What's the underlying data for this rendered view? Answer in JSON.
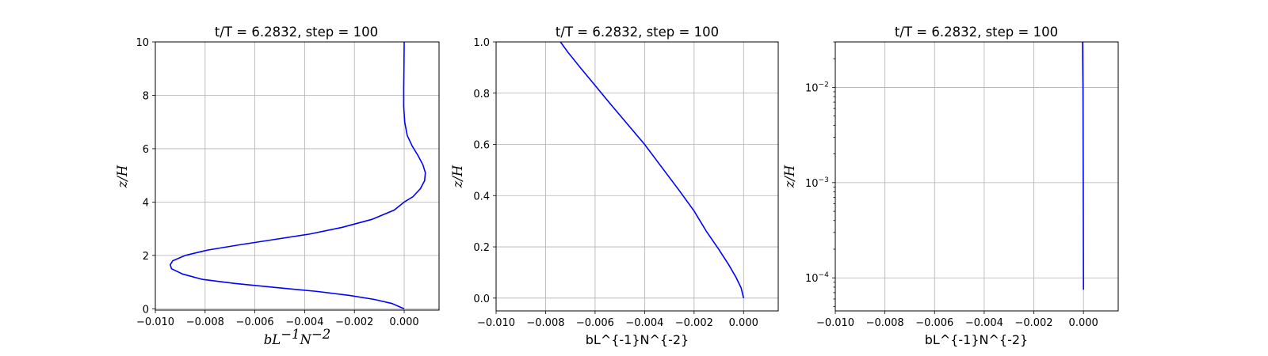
{
  "chart_data": [
    {
      "type": "line",
      "title": "t/T = 6.2832, step = 100",
      "xlabel": "bL^{-1}N^{-2}",
      "ylabel": "z/H",
      "xlim": [
        -0.01,
        0.0014
      ],
      "ylim": [
        -0.05,
        10
      ],
      "yscale": "linear",
      "grid": true,
      "xticks": [
        "−0.010",
        "−0.008",
        "−0.006",
        "−0.004",
        "−0.002",
        "0.000"
      ],
      "xtick_values": [
        -0.01,
        -0.008,
        -0.006,
        -0.004,
        -0.002,
        0.0
      ],
      "yticks": [
        "0",
        "2",
        "4",
        "6",
        "8",
        "10"
      ],
      "ytick_values": [
        0,
        2,
        4,
        6,
        8,
        10
      ],
      "series": [
        {
          "color": "#0000ff",
          "x": [
            0.0,
            -0.0005,
            -0.0012,
            -0.0022,
            -0.0035,
            -0.0052,
            -0.0068,
            -0.0081,
            -0.0089,
            -0.00935,
            -0.0094,
            -0.0093,
            -0.0088,
            -0.0079,
            -0.0066,
            -0.0052,
            -0.0038,
            -0.0025,
            -0.0013,
            -0.0004,
            0.0,
            0.00035,
            0.00065,
            0.00082,
            0.00085,
            0.00075,
            0.00055,
            0.00032,
            0.00012,
            2e-05,
            -2e-05,
            -2e-05,
            -1e-05,
            0.0
          ],
          "y": [
            0.0,
            0.2,
            0.35,
            0.5,
            0.65,
            0.8,
            0.95,
            1.1,
            1.3,
            1.5,
            1.65,
            1.8,
            2.0,
            2.2,
            2.4,
            2.6,
            2.8,
            3.05,
            3.35,
            3.7,
            4.0,
            4.2,
            4.5,
            4.8,
            5.1,
            5.4,
            5.75,
            6.1,
            6.5,
            7.0,
            7.6,
            8.3,
            9.0,
            10.0
          ]
        }
      ]
    },
    {
      "type": "line",
      "title": "t/T = 6.2832, step = 100",
      "xlabel": "bL^{-1}N^{-2}",
      "ylabel": "z/H",
      "xlim": [
        -0.01,
        0.0014
      ],
      "ylim": [
        -0.05,
        1.0
      ],
      "yscale": "linear",
      "grid": true,
      "xticks": [
        "−0.010",
        "−0.008",
        "−0.006",
        "−0.004",
        "−0.002",
        "0.000"
      ],
      "xtick_values": [
        -0.01,
        -0.008,
        -0.006,
        -0.004,
        -0.002,
        0.0
      ],
      "yticks": [
        "0.0",
        "0.2",
        "0.4",
        "0.6",
        "0.8",
        "1.0"
      ],
      "ytick_values": [
        0.0,
        0.2,
        0.4,
        0.6,
        0.8,
        1.0
      ],
      "series": [
        {
          "color": "#0000ff",
          "x": [
            0.0,
            -0.0001,
            -0.0003,
            -0.0006,
            -0.001,
            -0.0015,
            -0.002,
            -0.0026,
            -0.0033,
            -0.004,
            -0.0047,
            -0.0054,
            -0.006,
            -0.0066,
            -0.0071,
            -0.0074
          ],
          "y": [
            0.0,
            0.04,
            0.08,
            0.13,
            0.19,
            0.26,
            0.34,
            0.42,
            0.51,
            0.6,
            0.68,
            0.76,
            0.83,
            0.9,
            0.96,
            1.0
          ]
        }
      ]
    },
    {
      "type": "line",
      "title": "t/T = 6.2832, step = 100",
      "xlabel": "bL^{-1}N^{-2}",
      "ylabel": "z/H",
      "xlim": [
        -0.01,
        0.0014
      ],
      "ylim": [
        4.5e-05,
        0.03
      ],
      "yscale": "log",
      "grid": true,
      "xticks": [
        "−0.010",
        "−0.008",
        "−0.006",
        "−0.004",
        "−0.002",
        "0.000"
      ],
      "xtick_values": [
        -0.01,
        -0.008,
        -0.006,
        -0.004,
        -0.002,
        0.0
      ],
      "yticks": [
        "10",
        "10",
        "10"
      ],
      "ytick_exponents": [
        "−4",
        "−3",
        "−2"
      ],
      "ytick_values": [
        0.0001,
        0.001,
        0.01
      ],
      "series": [
        {
          "color": "#0000ff",
          "x": [
            0.0,
            -1e-05,
            -2e-05,
            -4e-05
          ],
          "y": [
            7.5e-05,
            0.001,
            0.01,
            0.03
          ]
        }
      ]
    }
  ]
}
